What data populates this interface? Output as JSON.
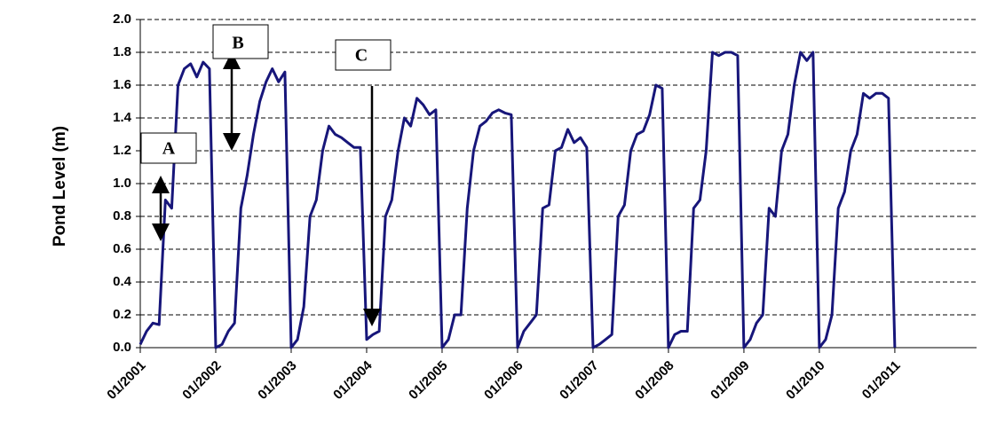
{
  "chart_data": {
    "type": "line",
    "y_label": "Pond Level (m)",
    "annotations": [
      "A",
      "B",
      "C"
    ],
    "x": [
      "01/2001",
      "02/2001",
      "03/2001",
      "04/2001",
      "05/2001",
      "06/2001",
      "07/2001",
      "08/2001",
      "09/2001",
      "10/2001",
      "11/2001",
      "12/2001",
      "01/2002",
      "02/2002",
      "03/2002",
      "04/2002",
      "05/2002",
      "06/2002",
      "07/2002",
      "08/2002",
      "09/2002",
      "10/2002",
      "11/2002",
      "12/2002",
      "01/2003",
      "02/2003",
      "03/2003",
      "04/2003",
      "05/2003",
      "06/2003",
      "07/2003",
      "08/2003",
      "09/2003",
      "10/2003",
      "11/2003",
      "12/2003",
      "01/2004",
      "02/2004",
      "03/2004",
      "04/2004",
      "05/2004",
      "06/2004",
      "07/2004",
      "08/2004",
      "09/2004",
      "10/2004",
      "11/2004",
      "12/2004",
      "01/2005",
      "02/2005",
      "03/2005",
      "04/2005",
      "05/2005",
      "06/2005",
      "07/2005",
      "08/2005",
      "09/2005",
      "10/2005",
      "11/2005",
      "12/2005",
      "01/2006",
      "02/2006",
      "03/2006",
      "04/2006",
      "05/2006",
      "06/2006",
      "07/2006",
      "08/2006",
      "09/2006",
      "10/2006",
      "11/2006",
      "12/2006",
      "01/2007",
      "02/2007",
      "03/2007",
      "04/2007",
      "05/2007",
      "06/2007",
      "07/2007",
      "08/2007",
      "09/2007",
      "10/2007",
      "11/2007",
      "12/2007",
      "01/2008",
      "02/2008",
      "03/2008",
      "04/2008",
      "05/2008",
      "06/2008",
      "07/2008",
      "08/2008",
      "09/2008",
      "10/2008",
      "11/2008",
      "12/2008",
      "01/2009",
      "02/2009",
      "03/2009",
      "04/2009",
      "05/2009",
      "06/2009",
      "07/2009",
      "08/2009",
      "09/2009",
      "10/2009",
      "11/2009",
      "12/2009",
      "01/2010",
      "02/2010",
      "03/2010",
      "04/2010",
      "05/2010",
      "06/2010",
      "07/2010",
      "08/2010",
      "09/2010",
      "10/2010",
      "11/2010",
      "12/2010",
      "01/2011"
    ],
    "series": [
      {
        "color": "#17167a",
        "values": [
          0.02,
          0.1,
          0.15,
          0.14,
          0.9,
          0.85,
          1.6,
          1.7,
          1.73,
          1.65,
          1.74,
          1.7,
          0.0,
          0.02,
          0.1,
          0.15,
          0.85,
          1.05,
          1.3,
          1.5,
          1.62,
          1.7,
          1.62,
          1.68,
          0.0,
          0.05,
          0.25,
          0.8,
          0.9,
          1.2,
          1.35,
          1.3,
          1.28,
          1.25,
          1.22,
          1.22,
          0.05,
          0.08,
          0.1,
          0.8,
          0.9,
          1.2,
          1.4,
          1.35,
          1.52,
          1.48,
          1.42,
          1.45,
          0.0,
          0.05,
          0.2,
          0.2,
          0.85,
          1.2,
          1.35,
          1.38,
          1.43,
          1.45,
          1.43,
          1.42,
          0.0,
          0.1,
          0.15,
          0.2,
          0.85,
          0.87,
          1.2,
          1.22,
          1.33,
          1.25,
          1.28,
          1.22,
          0.0,
          0.02,
          0.05,
          0.08,
          0.8,
          0.87,
          1.2,
          1.3,
          1.32,
          1.42,
          1.6,
          1.58,
          0.0,
          0.08,
          0.1,
          0.1,
          0.85,
          0.9,
          1.2,
          1.8,
          1.78,
          1.8,
          1.8,
          1.78,
          0.0,
          0.05,
          0.15,
          0.2,
          0.85,
          0.8,
          1.2,
          1.3,
          1.6,
          1.8,
          1.75,
          1.8,
          0.0,
          0.05,
          0.2,
          0.85,
          0.95,
          1.2,
          1.3,
          1.55,
          1.52,
          1.55,
          1.55,
          1.52,
          0.0
        ]
      }
    ],
    "xlim": [
      "01/2001",
      "02/2012"
    ],
    "xticks": [
      "01/2001",
      "01/2002",
      "01/2003",
      "01/2004",
      "01/2005",
      "01/2006",
      "01/2007",
      "01/2008",
      "01/2009",
      "01/2010",
      "01/2011"
    ],
    "ylim": [
      0,
      2
    ],
    "yticks": [
      {
        "value": 0,
        "label": "0.0"
      },
      0.2,
      0.4,
      0.6,
      0.8,
      {
        "value": 1,
        "label": "1.0"
      },
      1.2,
      1.4,
      1.6,
      1.8,
      {
        "value": 2,
        "label": "2.0"
      }
    ],
    "grid": true
  }
}
